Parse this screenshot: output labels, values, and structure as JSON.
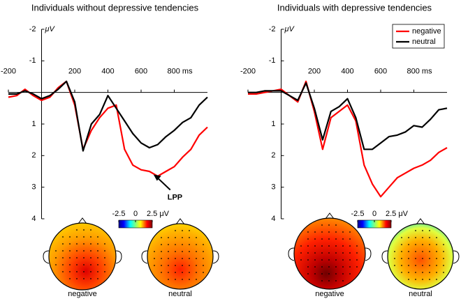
{
  "chart_data": [
    {
      "type": "line",
      "title": "Individuals without depressive tendencies",
      "ylabel": "μV",
      "x": [
        -200,
        -150,
        -100,
        -50,
        0,
        50,
        100,
        150,
        200,
        250,
        300,
        350,
        400,
        450,
        500,
        550,
        600,
        650,
        700,
        750,
        800,
        850,
        900,
        950,
        1000
      ],
      "series": [
        {
          "name": "negative",
          "color": "#ff0000",
          "values": [
            0.15,
            0.1,
            -0.1,
            0.1,
            0.25,
            0.15,
            -0.15,
            -0.35,
            0.4,
            1.8,
            1.2,
            0.8,
            0.5,
            0.4,
            1.8,
            2.3,
            2.45,
            2.5,
            2.65,
            2.5,
            2.35,
            2.05,
            1.8,
            1.35,
            1.1
          ]
        },
        {
          "name": "neutral",
          "color": "#000000",
          "values": [
            0.05,
            0.05,
            -0.05,
            0.05,
            0.2,
            0.1,
            -0.1,
            -0.35,
            0.3,
            1.85,
            1.0,
            0.7,
            0.1,
            0.5,
            0.9,
            1.3,
            1.6,
            1.75,
            1.65,
            1.4,
            1.2,
            0.95,
            0.8,
            0.4,
            0.15
          ]
        }
      ],
      "xlim": [
        -200,
        1000
      ],
      "ylim": [
        -2,
        4
      ],
      "y_inverted": true,
      "xticks": [
        -200,
        200,
        400,
        600,
        {
          "value": 800,
          "label": "800 ms"
        }
      ],
      "yticks": [
        -2,
        -1,
        1,
        2,
        3,
        4
      ],
      "legend": false,
      "annotation": "LPP"
    },
    {
      "type": "line",
      "title": "Individuals with depressive tendencies",
      "ylabel": "μV",
      "x": [
        -200,
        -150,
        -100,
        -50,
        0,
        50,
        100,
        150,
        200,
        250,
        300,
        350,
        400,
        450,
        500,
        550,
        600,
        650,
        700,
        750,
        800,
        850,
        900,
        950,
        1000
      ],
      "series": [
        {
          "name": "negative",
          "color": "#ff0000",
          "values": [
            0.05,
            0.05,
            0,
            -0.05,
            -0.1,
            0.1,
            0.3,
            -0.35,
            0.6,
            1.8,
            0.8,
            0.6,
            0.4,
            0.9,
            2.3,
            2.9,
            3.3,
            3.0,
            2.7,
            2.55,
            2.4,
            2.3,
            2.15,
            1.9,
            1.75
          ]
        },
        {
          "name": "neutral",
          "color": "#000000",
          "values": [
            0,
            0,
            -0.05,
            -0.05,
            -0.05,
            0.1,
            0.25,
            -0.3,
            0.5,
            1.5,
            0.6,
            0.45,
            0.2,
            0.8,
            1.8,
            1.8,
            1.6,
            1.4,
            1.35,
            1.25,
            1.05,
            1.1,
            0.85,
            0.55,
            0.5
          ]
        }
      ],
      "xlim": [
        -200,
        1000
      ],
      "ylim": [
        -2,
        4
      ],
      "y_inverted": true,
      "xticks": [
        -200,
        200,
        400,
        600,
        {
          "value": 800,
          "label": "800 ms"
        }
      ],
      "yticks": [
        -2,
        -1,
        1,
        2,
        3,
        4
      ],
      "legend": true,
      "legend_position": "upper right"
    }
  ],
  "topomaps": [
    {
      "colorbar_ticks": [
        -2.5,
        0,
        {
          "value": 2.5,
          "label": "2.5 μV"
        }
      ],
      "labels": [
        "negative",
        "neutral"
      ]
    },
    {
      "colorbar_ticks": [
        -2.5,
        0,
        {
          "value": 2.5,
          "label": "2.5 μV"
        }
      ],
      "labels": [
        "negative",
        "neutral"
      ]
    }
  ]
}
